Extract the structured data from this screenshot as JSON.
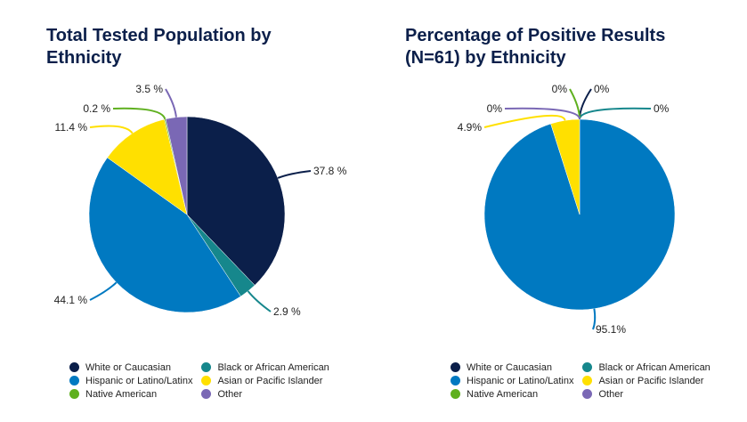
{
  "colors": {
    "White or Caucasian": "#0b1f4a",
    "Black or African American": "#16878c",
    "Hispanic or Latino/Latinx": "#0079c1",
    "Asian or Pacific Islander": "#ffe000",
    "Native American": "#5fb01f",
    "Other": "#7a68b5"
  },
  "chart_data": [
    {
      "type": "pie",
      "title": "Total Tested Population by Ethnicity",
      "categories": [
        "White or Caucasian",
        "Black or African American",
        "Hispanic or Latino/Latinx",
        "Asian or Pacific Islander",
        "Native American",
        "Other"
      ],
      "values": [
        37.8,
        2.9,
        44.1,
        11.4,
        0.2,
        3.5
      ],
      "labels": [
        "37.8 %",
        "2.9 %",
        "44.1 %",
        "11.4 %",
        "0.2 %",
        "3.5 %"
      ],
      "legend": [
        "White or Caucasian",
        "Black or African American",
        "Hispanic or Latino/Latinx",
        "Asian or Pacific Islander",
        "Native American",
        "Other"
      ],
      "legend_position": "bottom"
    },
    {
      "type": "pie",
      "title": "Percentage of Positive Results (N=61) by Ethnicity",
      "categories": [
        "White or Caucasian",
        "Black or African American",
        "Hispanic or Latino/Latinx",
        "Asian or Pacific Islander",
        "Native American",
        "Other"
      ],
      "values": [
        0,
        0,
        95.1,
        4.9,
        0,
        0
      ],
      "labels": [
        "0%",
        "0%",
        "95.1%",
        "4.9%",
        "0%",
        "0%"
      ],
      "legend": [
        "White or Caucasian",
        "Black or African American",
        "Hispanic or Latino/Latinx",
        "Asian or Pacific Islander",
        "Native American",
        "Other"
      ],
      "legend_position": "bottom"
    }
  ]
}
